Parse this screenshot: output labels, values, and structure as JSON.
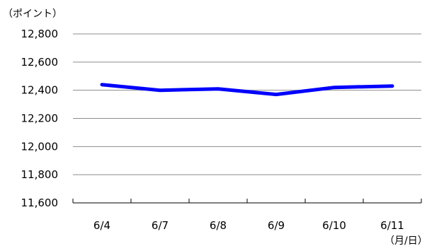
{
  "chart_data": {
    "type": "line",
    "y_unit_label": "（ポイント）",
    "x_unit_label": "（月/日）",
    "categories": [
      "6/4",
      "6/7",
      "6/8",
      "6/9",
      "6/10",
      "6/11"
    ],
    "series": [
      {
        "values": [
          12440,
          12400,
          12410,
          12370,
          12420,
          12430
        ]
      }
    ],
    "ylim": [
      11600,
      12800
    ],
    "yticks": [
      11600,
      11800,
      12000,
      12200,
      12400,
      12600,
      12800
    ],
    "ytick_labels": [
      "11,600",
      "11,800",
      "12,000",
      "12,200",
      "12,400",
      "12,600",
      "12,800"
    ],
    "grid": true,
    "line_color": "#0000ff",
    "grid_color": "#8c8c8c"
  }
}
